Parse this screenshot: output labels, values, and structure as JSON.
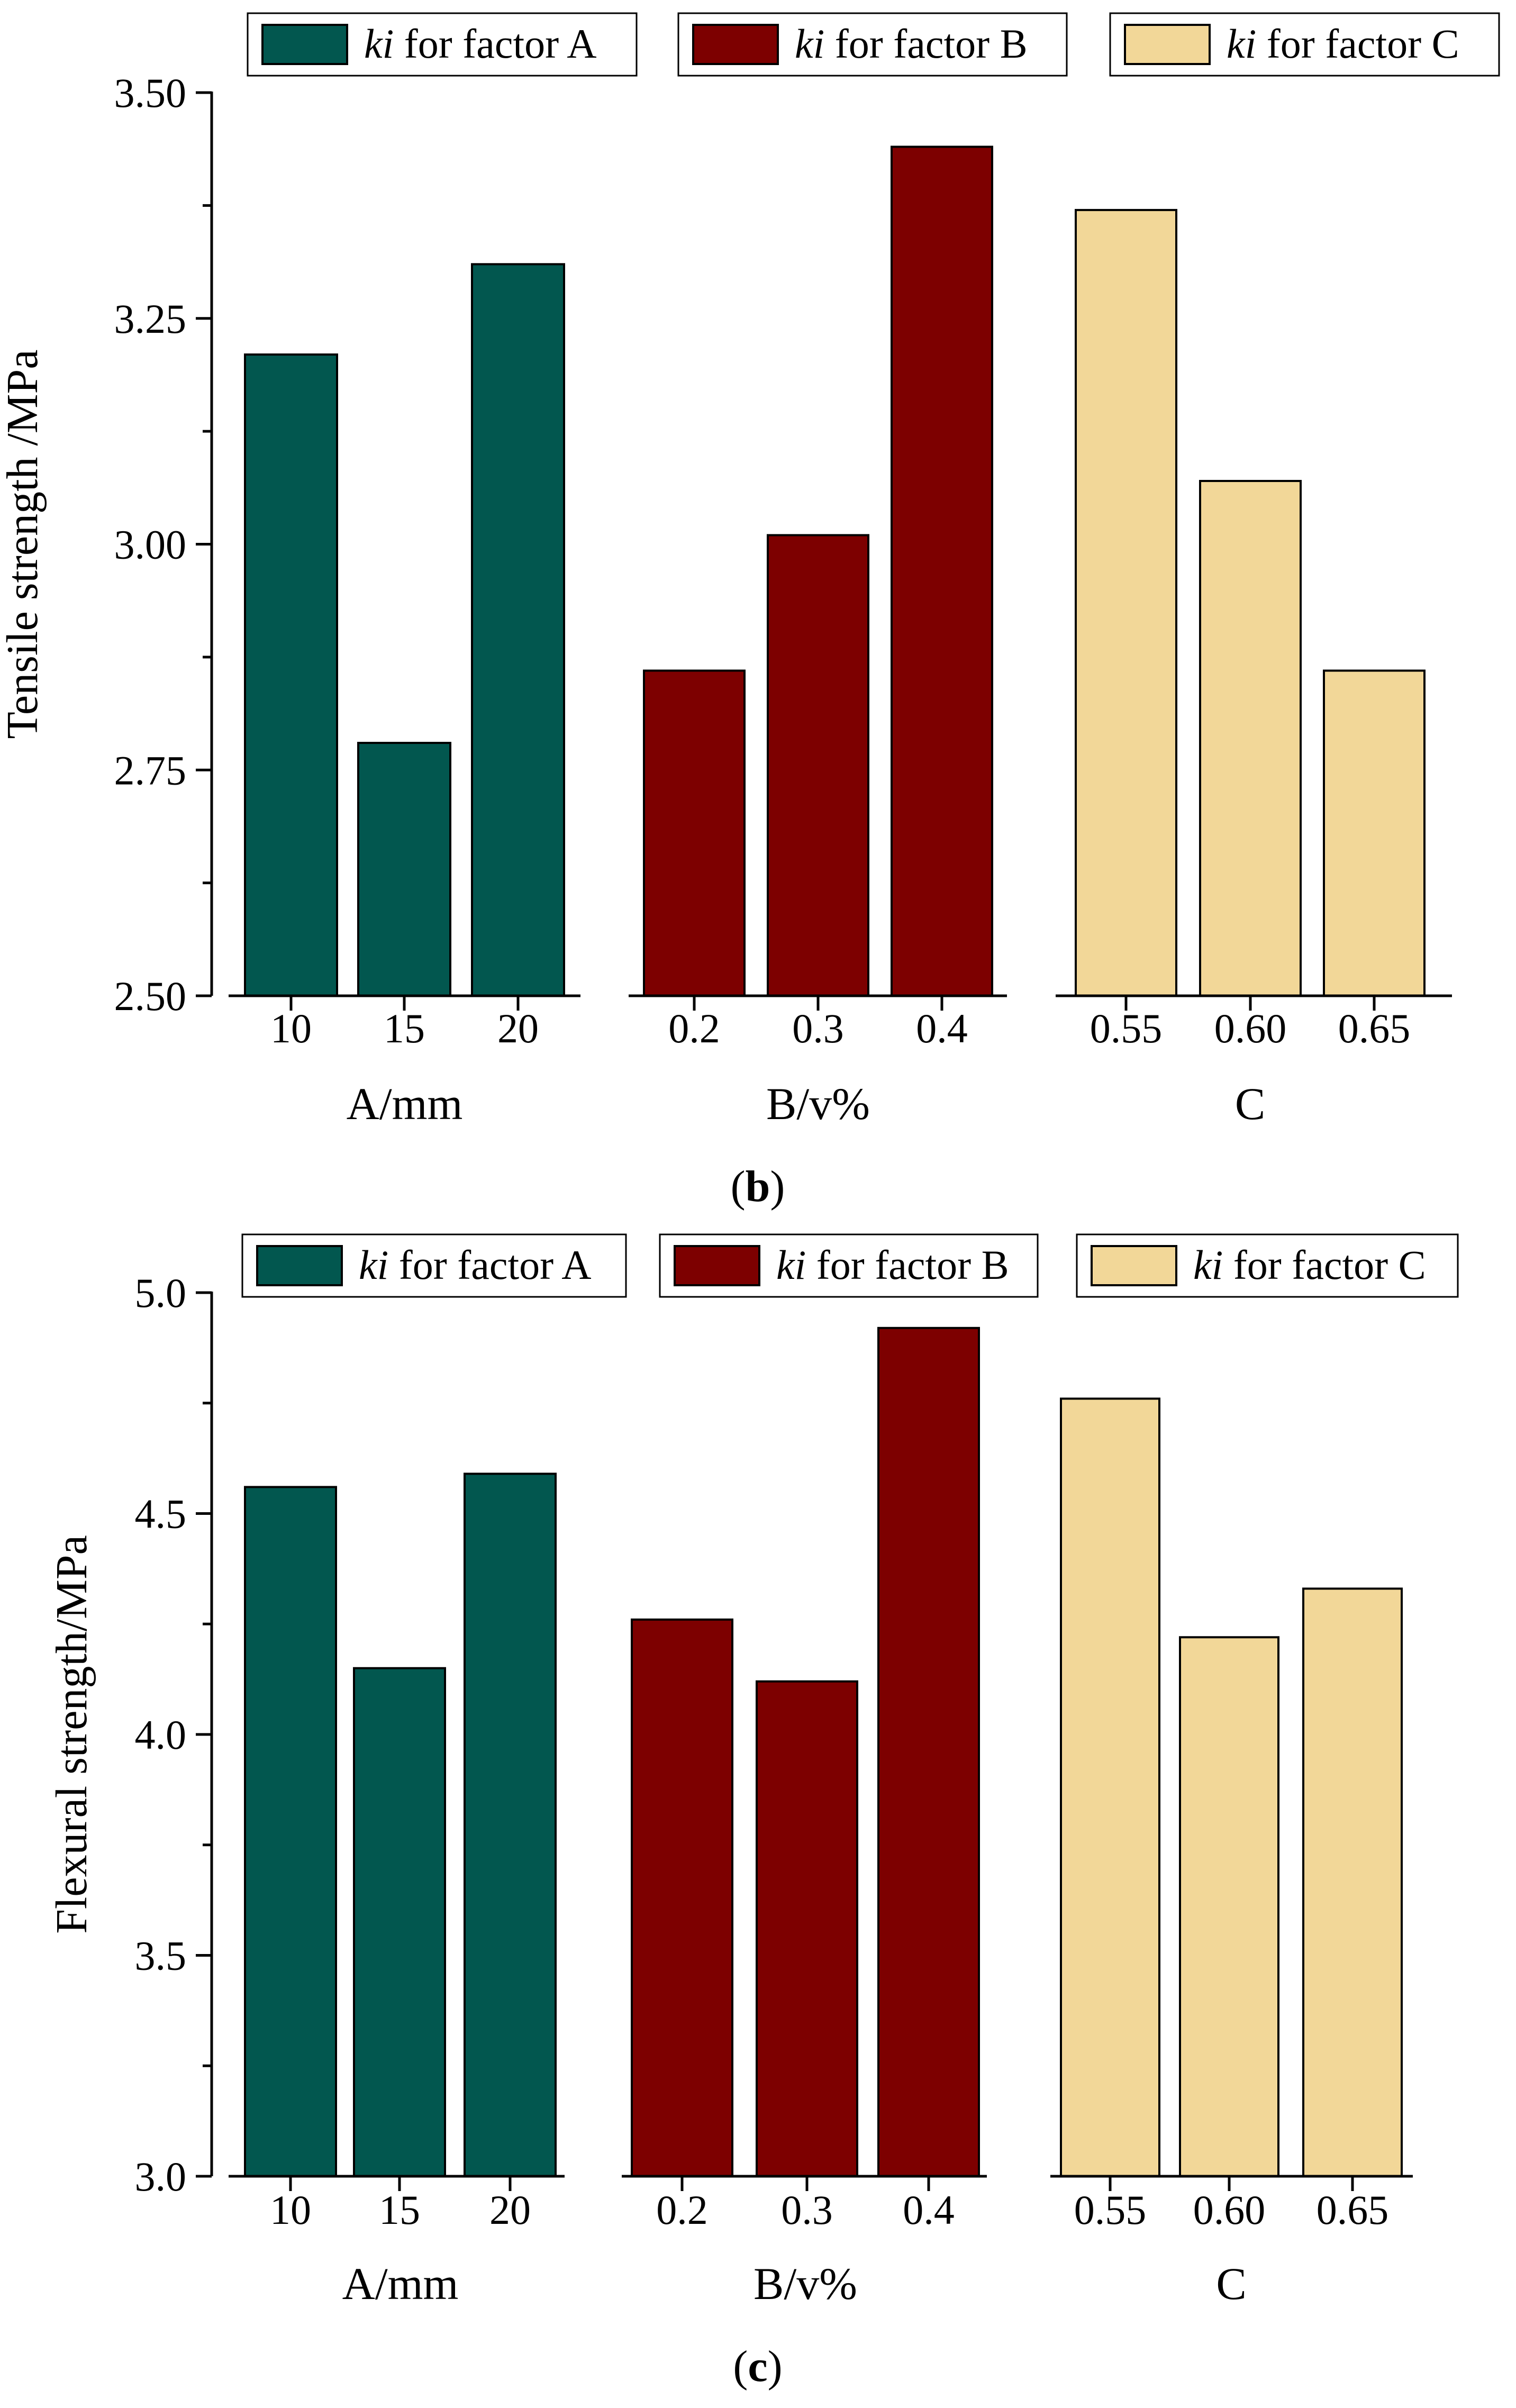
{
  "chart_data": [
    {
      "id": "b",
      "type": "bar",
      "panel_label": "b",
      "ylabel": "Tensile strength /MPa",
      "ylim": [
        2.5,
        3.5
      ],
      "yticks": [
        "2.50",
        "2.75",
        "3.00",
        "3.25",
        "3.50"
      ],
      "groups": [
        {
          "legend_italic": "ki",
          "legend_rest": " for factor A",
          "xlabel": "A/mm",
          "color": "#02574f",
          "categories": [
            "10",
            "15",
            "20"
          ],
          "values": [
            3.21,
            2.78,
            3.31
          ]
        },
        {
          "legend_italic": "ki",
          "legend_rest": " for factor B",
          "xlabel": "B/v%",
          "color": "#7d0000",
          "categories": [
            "0.2",
            "0.3",
            "0.4"
          ],
          "values": [
            2.86,
            3.01,
            3.44
          ]
        },
        {
          "legend_italic": "ki",
          "legend_rest": " for factor C",
          "xlabel": "C",
          "color": "#f2d798",
          "categories": [
            "0.55",
            "0.60",
            "0.65"
          ],
          "values": [
            3.37,
            3.07,
            2.86
          ]
        }
      ]
    },
    {
      "id": "c",
      "type": "bar",
      "panel_label": "c",
      "ylabel": "Flexural strength/MPa",
      "ylim": [
        3.0,
        5.0
      ],
      "yticks": [
        "3.0",
        "3.5",
        "4.0",
        "4.5",
        "5.0"
      ],
      "groups": [
        {
          "legend_italic": "ki",
          "legend_rest": " for factor A",
          "xlabel": "A/mm",
          "color": "#02574f",
          "categories": [
            "10",
            "15",
            "20"
          ],
          "values": [
            4.56,
            4.15,
            4.59
          ]
        },
        {
          "legend_italic": "ki",
          "legend_rest": " for factor B",
          "xlabel": "B/v%",
          "color": "#7d0000",
          "categories": [
            "0.2",
            "0.3",
            "0.4"
          ],
          "values": [
            4.26,
            4.12,
            4.92
          ]
        },
        {
          "legend_italic": "ki",
          "legend_rest": " for factor C",
          "xlabel": "C",
          "color": "#f2d798",
          "categories": [
            "0.55",
            "0.60",
            "0.65"
          ],
          "values": [
            4.76,
            4.22,
            4.33
          ]
        }
      ]
    }
  ]
}
